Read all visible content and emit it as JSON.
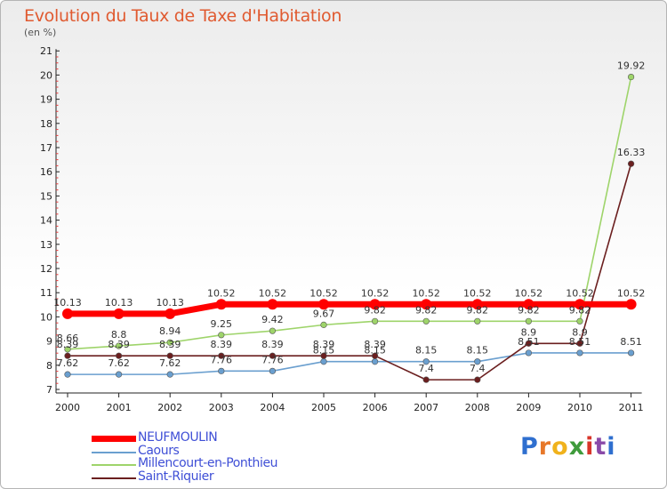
{
  "title": "Evolution du Taux de Taxe d'Habitation",
  "unit": "(en %)",
  "brand": {
    "letters": [
      {
        "ch": "P",
        "color": "#2f6fcf"
      },
      {
        "ch": "r",
        "color": "#e7782a"
      },
      {
        "ch": "o",
        "color": "#f0b21c"
      },
      {
        "ch": "x",
        "color": "#3f9b3c"
      },
      {
        "ch": "i",
        "color": "#d8352a"
      },
      {
        "ch": "t",
        "color": "#8a4aa8"
      },
      {
        "ch": "i",
        "color": "#2f6fcf"
      }
    ]
  },
  "chart_data": {
    "type": "line",
    "title": "Evolution du Taux de Taxe d'Habitation",
    "ylabel": "(en %)",
    "xlabel": "",
    "ylim": [
      7,
      21
    ],
    "yticks": [
      "7",
      "8",
      "9",
      "10",
      "11",
      "12",
      "13",
      "14",
      "15",
      "16",
      "17",
      "18",
      "19",
      "20",
      "21"
    ],
    "categories": [
      "2000",
      "2001",
      "2002",
      "2003",
      "2004",
      "2005",
      "2006",
      "2007",
      "2008",
      "2009",
      "2010",
      "2011"
    ],
    "series": [
      {
        "name": "NEUFMOULIN",
        "color": "#ff0000",
        "values": [
          10.13,
          10.13,
          10.13,
          10.52,
          10.52,
          10.52,
          10.52,
          10.52,
          10.52,
          10.52,
          10.52,
          10.52
        ],
        "labels": [
          "10.13",
          "10.13",
          "10.13",
          "10.52",
          "10.52",
          "10.52",
          "10.52",
          "10.52",
          "10.52",
          "10.52",
          "10.52",
          "10.52"
        ]
      },
      {
        "name": "Caours",
        "color": "#6a9fcf",
        "values": [
          7.62,
          7.62,
          7.62,
          7.76,
          7.76,
          8.15,
          8.15,
          8.15,
          8.15,
          8.51,
          8.51,
          8.51
        ],
        "labels": [
          "7.62",
          "7.62",
          "7.62",
          "7.76",
          "7.76",
          "8.15",
          "8.15",
          "8.15",
          "8.15",
          "8.51",
          "8.51",
          "8.51"
        ]
      },
      {
        "name": "Millencourt-en-Ponthieu",
        "color": "#9ed46a",
        "values": [
          8.66,
          8.8,
          8.94,
          9.25,
          9.42,
          9.67,
          9.82,
          9.82,
          9.82,
          9.82,
          9.82,
          19.92
        ],
        "labels": [
          "8.66",
          "8.8",
          "8.94",
          "9.25",
          "9.42",
          "9.67",
          "9.82",
          "9.82",
          "9.82",
          "9.82",
          "9.82",
          "19.92"
        ]
      },
      {
        "name": "Saint-Riquier",
        "color": "#6b1f1f",
        "values": [
          8.39,
          8.39,
          8.39,
          8.39,
          8.39,
          8.39,
          8.39,
          7.4,
          7.4,
          8.9,
          8.9,
          16.33
        ],
        "labels": [
          "8.39",
          "8.39",
          "8.39",
          "8.39",
          "8.39",
          "8.39",
          "8.39",
          "7.4",
          "7.4",
          "8.9",
          "8.9",
          "16.33"
        ]
      }
    ]
  }
}
